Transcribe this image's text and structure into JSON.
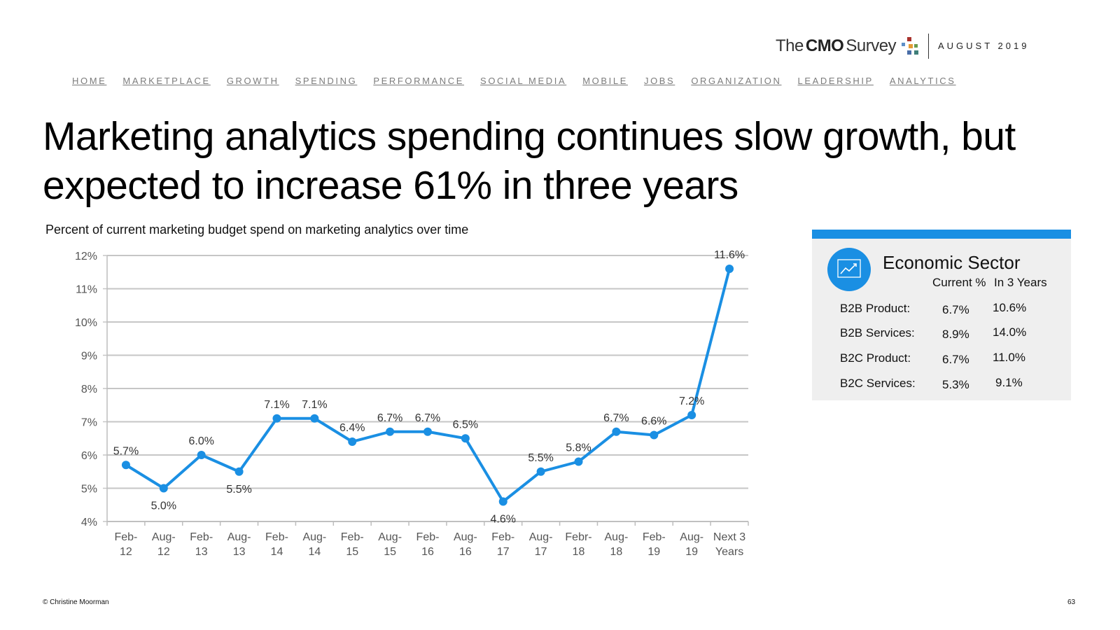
{
  "header": {
    "logo": {
      "the": "The",
      "cmo": "CMO",
      "survey": "Survey"
    },
    "date": "AUGUST 2019"
  },
  "nav": [
    "HOME",
    "MARKETPLACE",
    "GROWTH",
    "SPENDING",
    "PERFORMANCE",
    "SOCIAL MEDIA",
    "MOBILE",
    "JOBS",
    "ORGANIZATION",
    "LEADERSHIP",
    "ANALYTICS"
  ],
  "title": "Marketing analytics spending continues slow growth, but expected to increase 61% in three years",
  "chart_data": {
    "type": "line",
    "title": "Percent of current marketing budget spend on marketing analytics over time",
    "categories": [
      "Feb-\n12",
      "Aug-\n12",
      "Feb-\n13",
      "Aug-\n13",
      "Feb-\n14",
      "Aug-\n14",
      "Feb-\n15",
      "Aug-\n15",
      "Feb-\n16",
      "Aug-\n16",
      "Feb-\n17",
      "Aug-\n17",
      "Febr-\n18",
      "Aug-\n18",
      "Feb-\n19",
      "Aug-\n19",
      "Next 3\nYears"
    ],
    "values": [
      5.7,
      5.0,
      6.0,
      5.5,
      7.1,
      7.1,
      6.4,
      6.7,
      6.7,
      6.5,
      4.6,
      5.5,
      5.8,
      6.7,
      6.6,
      7.2,
      11.6
    ],
    "labels": [
      "5.7%",
      "5.0%",
      "6.0%",
      "5.5%",
      "7.1%",
      "7.1%",
      "6.4%",
      "6.7%",
      "6.7%",
      "6.5%",
      "4.6%",
      "5.5%",
      "5.8%",
      "6.7%",
      "6.6%",
      "7.2%",
      "11.6%"
    ],
    "label_position": [
      "above",
      "below",
      "above",
      "below",
      "above",
      "above",
      "above",
      "above",
      "above",
      "above",
      "below",
      "above",
      "above",
      "above",
      "above",
      "above",
      "above"
    ],
    "yticks": [
      4,
      5,
      6,
      7,
      8,
      9,
      10,
      11,
      12
    ],
    "ytick_labels": [
      "4%",
      "5%",
      "6%",
      "7%",
      "8%",
      "9%",
      "10%",
      "11%",
      "12%"
    ],
    "ylim": [
      4,
      12
    ],
    "xlabel": "",
    "ylabel": "",
    "grid": true,
    "color": "#1a8fe3"
  },
  "sector_panel": {
    "title": "Economic Sector",
    "col_current": "Current %",
    "col_future": "In 3 Years",
    "rows": [
      {
        "label": "B2B Product:",
        "current": "6.7%",
        "future": "10.6%"
      },
      {
        "label": "B2B Services:",
        "current": "8.9%",
        "future": "14.0%"
      },
      {
        "label": "B2C Product:",
        "current": "6.7%",
        "future": "11.0%"
      },
      {
        "label": "B2C Services:",
        "current": "5.3%",
        "future": "9.1%"
      }
    ]
  },
  "footer": {
    "copyright": "© Christine Moorman",
    "page": "63"
  },
  "colors": {
    "accent": "#1a8fe3",
    "panel": "#efefef",
    "nav": "#7b7b7b"
  }
}
